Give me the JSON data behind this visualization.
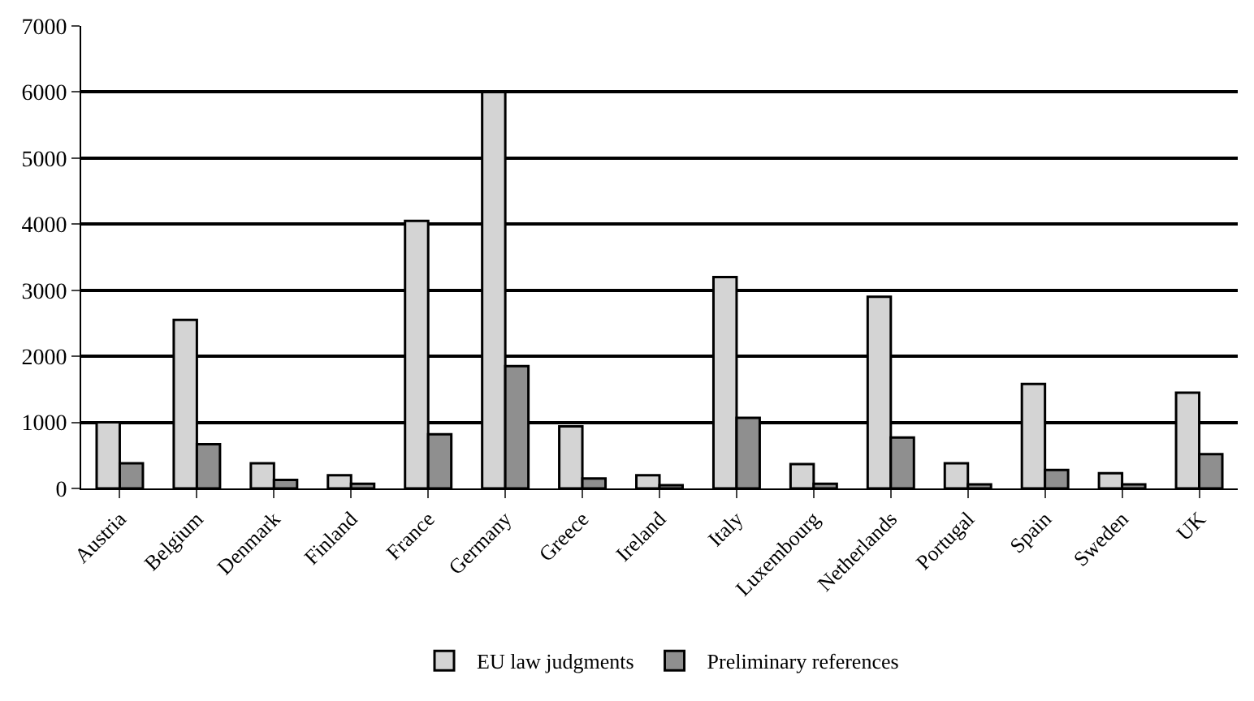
{
  "chart_data": {
    "type": "bar",
    "categories": [
      "Austria",
      "Belgium",
      "Denmark",
      "Finland",
      "France",
      "Germany",
      "Greece",
      "Ireland",
      "Italy",
      "Luxembourg",
      "Netherlands",
      "Portugal",
      "Spain",
      "Sweden",
      "UK"
    ],
    "series": [
      {
        "name": "EU law judgments",
        "color": "#d4d4d4",
        "values": [
          1000,
          2550,
          380,
          200,
          4050,
          6000,
          940,
          200,
          3200,
          370,
          2900,
          380,
          1580,
          230,
          1450
        ]
      },
      {
        "name": "Preliminary references",
        "color": "#8f8f8f",
        "values": [
          380,
          670,
          130,
          70,
          820,
          1850,
          150,
          50,
          1070,
          70,
          770,
          60,
          280,
          60,
          520
        ]
      }
    ],
    "ylim": [
      0,
      7000
    ],
    "yticks": [
      0,
      1000,
      2000,
      3000,
      4000,
      5000,
      6000,
      7000
    ],
    "grid": "y",
    "legend": "bottom"
  }
}
